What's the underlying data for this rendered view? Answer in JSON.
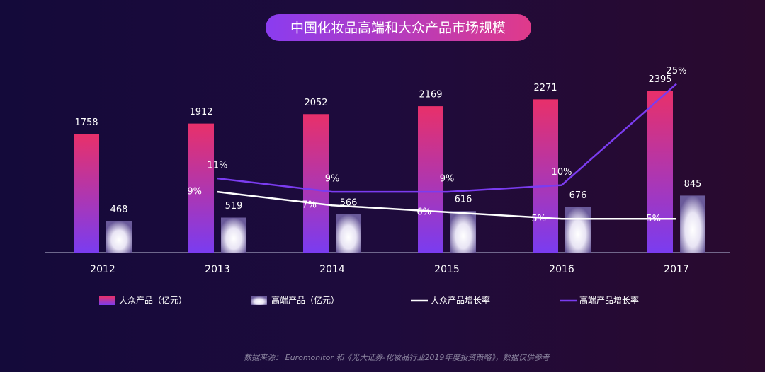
{
  "chart_data": {
    "type": "bar-line",
    "title": "中国化妆品高端和大众产品市场规模",
    "categories": [
      "2012",
      "2013",
      "2014",
      "2015",
      "2016",
      "2017"
    ],
    "series": [
      {
        "name": "大众产品（亿元）",
        "type": "bar",
        "color": "#e0306a",
        "values": [
          1758,
          1912,
          2052,
          2169,
          2271,
          2395
        ]
      },
      {
        "name": "高端产品（亿元）",
        "type": "bar",
        "color": "#ffffff",
        "values": [
          468,
          519,
          566,
          616,
          676,
          845
        ]
      },
      {
        "name": "大众产品增长率",
        "type": "line",
        "axis": "y2",
        "color": "#ffffff",
        "values": [
          null,
          9,
          7,
          6,
          5,
          5
        ],
        "value_labels": [
          null,
          "9%",
          "7%",
          "6%",
          "5%",
          "5%"
        ]
      },
      {
        "name": "高端产品增长率",
        "type": "line",
        "axis": "y2",
        "color": "#7b3cf0",
        "values": [
          null,
          11,
          9,
          9,
          10,
          25
        ],
        "value_labels": [
          null,
          "11%",
          "9%",
          "9%",
          "10%",
          "25%"
        ]
      }
    ],
    "ylim": [
      0,
      2600
    ],
    "y2lim": [
      0,
      26
    ],
    "source": "数据来源： Euromonitor 和《光大证券-化妆品行业2019年度投资策略》，数据仅供参考"
  }
}
